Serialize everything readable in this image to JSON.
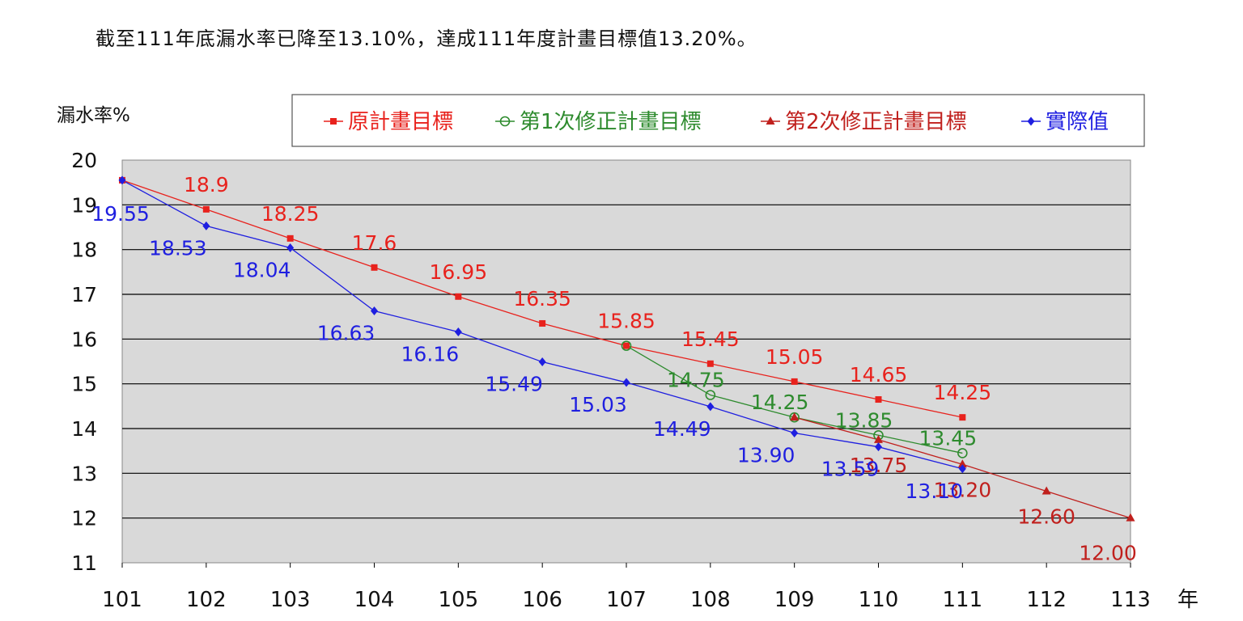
{
  "headline": "截至111年底漏水率已降至13.10%，達成111年度計畫目標值13.20%。",
  "chart_data": {
    "type": "line",
    "y_unit_label": "漏水率%",
    "x_unit_label": "年",
    "ylim": [
      11,
      20
    ],
    "yticks": [
      "11",
      "12",
      "13",
      "14",
      "15",
      "16",
      "17",
      "18",
      "19",
      "20"
    ],
    "categories": [
      "101",
      "102",
      "103",
      "104",
      "105",
      "106",
      "107",
      "108",
      "109",
      "110",
      "111",
      "112",
      "113"
    ],
    "grid": true,
    "legend_position": "top",
    "series": [
      {
        "name": "原計畫目標",
        "color": "#e8221d",
        "marker": "square",
        "x": [
          "101",
          "102",
          "103",
          "104",
          "105",
          "106",
          "107",
          "108",
          "109",
          "110",
          "111"
        ],
        "values": [
          19.55,
          18.9,
          18.25,
          17.6,
          16.95,
          16.35,
          15.85,
          15.45,
          15.05,
          14.65,
          14.25
        ],
        "labels": [
          "",
          "18.9",
          "18.25",
          "17.6",
          "16.95",
          "16.35",
          "15.85",
          "15.45",
          "15.05",
          "14.65",
          "14.25"
        ]
      },
      {
        "name": "第1次修正計畫目標",
        "color": "#2e8b2e",
        "marker": "circle-open",
        "x": [
          "107",
          "108",
          "109",
          "110",
          "111"
        ],
        "values": [
          15.85,
          14.75,
          14.25,
          13.85,
          13.45
        ],
        "labels": [
          "",
          "14.75",
          "14.25",
          "13.85",
          "13.45"
        ]
      },
      {
        "name": "第2次修正計畫目標",
        "color": "#c0201d",
        "marker": "triangle",
        "x": [
          "109",
          "110",
          "111",
          "112",
          "113"
        ],
        "values": [
          14.25,
          13.75,
          13.2,
          12.6,
          12.0
        ],
        "labels": [
          "",
          "13.75",
          "13.20",
          "12.60",
          "12.00"
        ]
      },
      {
        "name": "實際值",
        "color": "#1f1fe0",
        "marker": "diamond",
        "x": [
          "101",
          "102",
          "103",
          "104",
          "105",
          "106",
          "107",
          "108",
          "109",
          "110",
          "111"
        ],
        "values": [
          19.55,
          18.53,
          18.04,
          16.63,
          16.16,
          15.49,
          15.03,
          14.49,
          13.9,
          13.59,
          13.1
        ],
        "labels": [
          "19.55",
          "18.53",
          "18.04",
          "16.63",
          "16.16",
          "15.49",
          "15.03",
          "14.49",
          "13.90",
          "13.59",
          "13.10"
        ]
      }
    ]
  }
}
